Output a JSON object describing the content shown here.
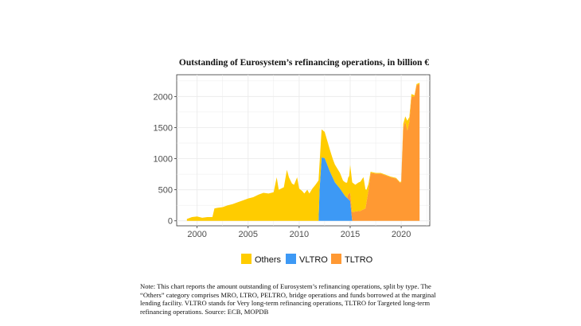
{
  "chart_data": {
    "type": "area",
    "title": "Outstanding of Eurosystem’s refinancing operations, in billion €",
    "xlabel": "",
    "ylabel": "",
    "xlim": [
      1998,
      2022.8
    ],
    "ylim": [
      -80,
      2350
    ],
    "x_ticks": [
      2000,
      2005,
      2010,
      2015,
      2020
    ],
    "y_ticks": [
      0,
      500,
      1000,
      1500,
      2000
    ],
    "grid": true,
    "legend_position": "bottom",
    "stacking": "stacked, bottom-to-top: VLTRO, TLTRO, Others",
    "series": [
      {
        "name": "Others",
        "color": "#FFCC00",
        "x": [
          1999.0,
          1999.5,
          2000.0,
          2000.5,
          2001.0,
          2001.5,
          2001.7,
          2002.0,
          2002.5,
          2003.0,
          2003.5,
          2004.0,
          2004.5,
          2005.0,
          2005.5,
          2006.0,
          2006.5,
          2007.0,
          2007.5,
          2007.8,
          2008.0,
          2008.5,
          2008.8,
          2009.0,
          2009.3,
          2009.5,
          2009.8,
          2010.0,
          2010.3,
          2010.5,
          2010.8,
          2011.0,
          2011.3,
          2011.6,
          2011.9,
          2012.0,
          2012.2,
          2012.5,
          2012.8,
          2013.0,
          2013.3,
          2013.6,
          2014.0,
          2014.3,
          2014.6,
          2014.9,
          2015.0,
          2015.2,
          2015.5,
          2015.8,
          2016.0,
          2016.3,
          2016.6,
          2016.8,
          2017.0,
          2017.5,
          2018.0,
          2018.5,
          2019.0,
          2019.5,
          2019.9,
          2020.0,
          2020.2,
          2020.4,
          2020.6,
          2020.8,
          2021.0,
          2021.3,
          2021.5,
          2021.8
        ],
        "values": [
          30,
          60,
          70,
          50,
          60,
          60,
          200,
          210,
          220,
          250,
          270,
          300,
          330,
          360,
          380,
          420,
          450,
          440,
          460,
          700,
          500,
          540,
          820,
          700,
          600,
          580,
          700,
          520,
          480,
          440,
          500,
          440,
          520,
          580,
          650,
          420,
          450,
          420,
          380,
          350,
          300,
          280,
          250,
          200,
          230,
          280,
          450,
          480,
          430,
          460,
          470,
          520,
          200,
          100,
          20,
          10,
          10,
          10,
          10,
          10,
          10,
          20,
          60,
          80,
          160,
          70,
          40,
          20,
          20,
          20
        ]
      },
      {
        "name": "VLTRO",
        "color": "#3D99F5",
        "x": [
          1999.0,
          2011.9,
          2012.0,
          2012.2,
          2012.5,
          2013.0,
          2013.5,
          2014.0,
          2014.5,
          2015.0,
          2015.2,
          2021.8
        ],
        "values": [
          0,
          0,
          500,
          1020,
          1010,
          800,
          620,
          520,
          400,
          320,
          0,
          0
        ]
      },
      {
        "name": "TLTRO",
        "color": "#FF9933",
        "x": [
          1999.0,
          2014.7,
          2014.8,
          2015.0,
          2015.5,
          2016.0,
          2016.5,
          2016.8,
          2017.0,
          2017.5,
          2018.0,
          2018.5,
          2019.0,
          2019.5,
          2019.9,
          2020.0,
          2020.2,
          2020.4,
          2020.6,
          2020.8,
          2021.0,
          2021.3,
          2021.5,
          2021.8
        ],
        "values": [
          0,
          0,
          80,
          130,
          150,
          160,
          200,
          500,
          770,
          760,
          760,
          730,
          700,
          680,
          610,
          620,
          1500,
          1600,
          1450,
          1600,
          2000,
          2000,
          2180,
          2200
        ]
      }
    ]
  },
  "note": "Note: This chart reports the amount outstanding of Eurosystem’s refinancing operations, split by type. The “Others” category comprises MRO, LTRO, PELTRO, bridge operations and funds borrowed at the marginal lending facility. VLTRO stands for Very long-term refinancing operations, TLTRO for Targeted long-term refinancing operations. Source: ECB, MOPDB"
}
